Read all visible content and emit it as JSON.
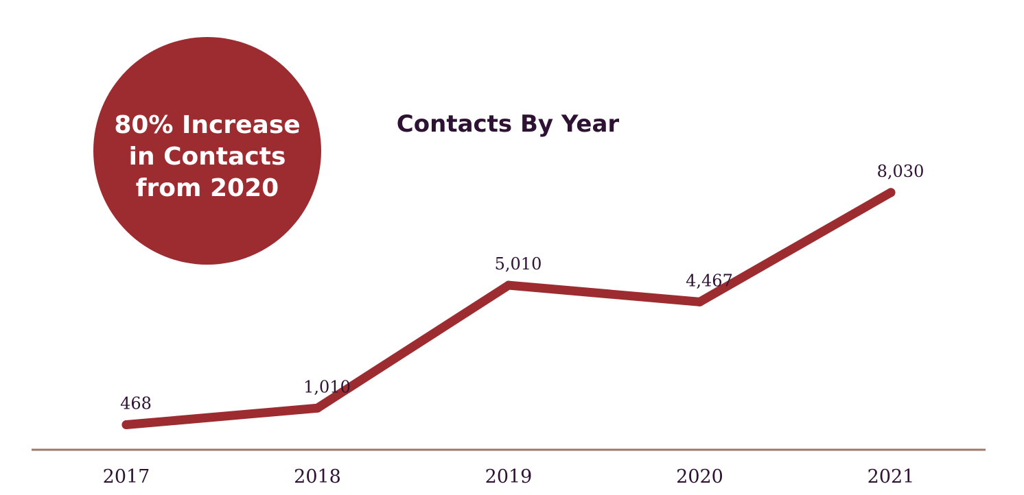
{
  "callout": {
    "lines": [
      "80% Increase",
      "in Contacts",
      "from 2020"
    ]
  },
  "colors": {
    "line": "#9c2c30",
    "callout_fill": "#9c2c30",
    "callout_text": "#ffffff",
    "title": "#2e1234",
    "labels": "#2e1234",
    "axis": "#a07868"
  },
  "chart_data": {
    "type": "line",
    "title": "Contacts By Year",
    "xlabel": "",
    "ylabel": "",
    "categories": [
      "2017",
      "2018",
      "2019",
      "2020",
      "2021"
    ],
    "values": [
      468,
      1010,
      5010,
      4467,
      8030
    ],
    "data_labels": [
      "468",
      "1,010",
      "5,010",
      "4,467",
      "8,030"
    ],
    "ylim": [
      0,
      10000
    ],
    "grid": false,
    "legend": "none"
  }
}
